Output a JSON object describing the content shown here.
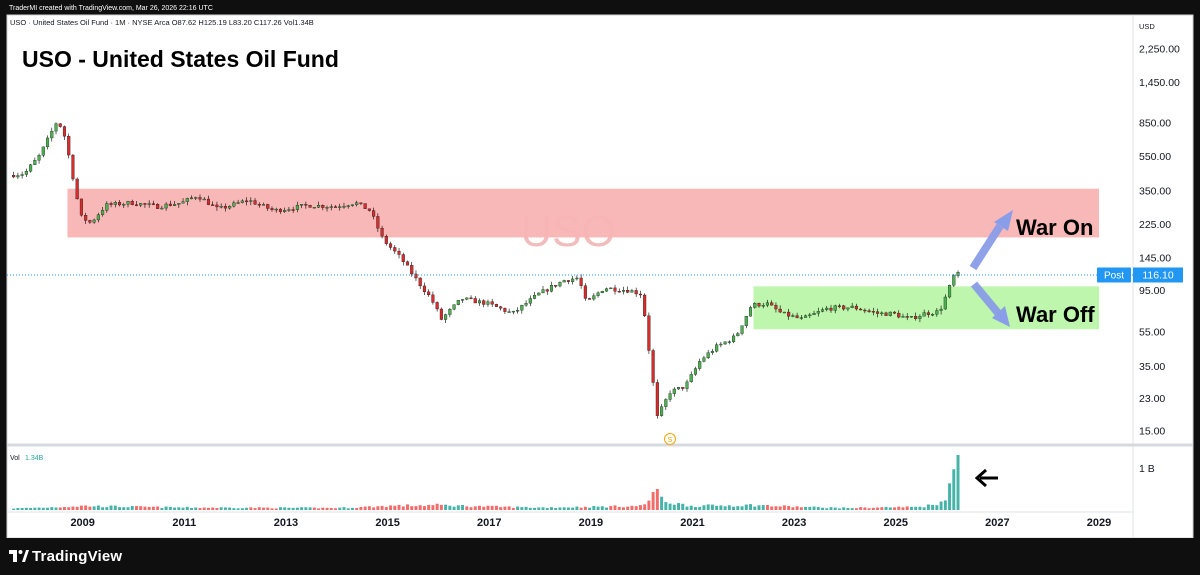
{
  "header": {
    "meta": "TraderMI created with TradingView.com, Mar 26, 2026 22:16 UTC",
    "symbol_line": "USO · United States Oil Fund · 1M · NYSE Arca  O87.62  H125.19  L83.20  C117.26  Vol1.34B",
    "chart_title": "USO - United States Oil Fund",
    "watermark": "USO"
  },
  "colors": {
    "up": "#26a69a",
    "up_body": "#4caf50",
    "down": "#ef5350",
    "down_body": "#d32f2f",
    "red_zone": "#f8b4b4",
    "green_zone": "#b9f6a8",
    "price_line": "#2196f3",
    "arrow": "#7b8fe0",
    "vol_up": "#26a69a",
    "vol_down": "#ef5350"
  },
  "price_axis": {
    "currency": "USD",
    "ticks": [
      "2,250.00",
      "1,450.00",
      "850.00",
      "550.00",
      "350.00",
      "225.00",
      "145.00",
      "95.00",
      "55.00",
      "35.00",
      "23.00",
      "15.00"
    ],
    "current_label": "Post",
    "current_value": "116.10"
  },
  "volume_axis": {
    "label": "Vol",
    "value": "1.34B",
    "tick": "1 B"
  },
  "time_axis": {
    "ticks": [
      "2009",
      "2011",
      "2013",
      "2015",
      "2017",
      "2019",
      "2021",
      "2023",
      "2025",
      "2027",
      "2029"
    ]
  },
  "annotations": {
    "war_on": "War On",
    "war_off": "War Off",
    "split_marker": "S"
  },
  "brand": {
    "name": "TradingView"
  },
  "chart_data": {
    "type": "candlestick",
    "interval": "1M",
    "y_scale": "log",
    "y_range": [
      13,
      2900
    ],
    "x_range": [
      2007.55,
      2029.55
    ],
    "zones": [
      {
        "name": "red zone",
        "x": [
          2008.7,
          2029.0
        ],
        "y": [
          190,
          360
        ]
      },
      {
        "name": "green zone",
        "x": [
          2022.2,
          2029.0
        ],
        "y": [
          57,
          100
        ]
      }
    ],
    "keypoints": [
      [
        2007.6,
        430
      ],
      [
        2007.9,
        440
      ],
      [
        2008.2,
        560
      ],
      [
        2008.45,
        780
      ],
      [
        2008.55,
        890
      ],
      [
        2008.7,
        700
      ],
      [
        2008.85,
        420
      ],
      [
        2009.0,
        250
      ],
      [
        2009.2,
        230
      ],
      [
        2009.5,
        290
      ],
      [
        2010.0,
        300
      ],
      [
        2010.5,
        285
      ],
      [
        2011.0,
        300
      ],
      [
        2011.3,
        330
      ],
      [
        2011.7,
        275
      ],
      [
        2012.3,
        310
      ],
      [
        2012.8,
        270
      ],
      [
        2013.5,
        290
      ],
      [
        2014.0,
        285
      ],
      [
        2014.4,
        300
      ],
      [
        2014.7,
        270
      ],
      [
        2014.95,
        185
      ],
      [
        2015.3,
        145
      ],
      [
        2015.6,
        110
      ],
      [
        2015.9,
        85
      ],
      [
        2016.1,
        65
      ],
      [
        2016.5,
        85
      ],
      [
        2017.0,
        80
      ],
      [
        2017.5,
        70
      ],
      [
        2018.0,
        90
      ],
      [
        2018.5,
        108
      ],
      [
        2018.8,
        112
      ],
      [
        2018.95,
        80
      ],
      [
        2019.3,
        98
      ],
      [
        2019.8,
        95
      ],
      [
        2020.05,
        90
      ],
      [
        2020.2,
        40
      ],
      [
        2020.35,
        18
      ],
      [
        2020.6,
        25
      ],
      [
        2020.9,
        27
      ],
      [
        2021.2,
        38
      ],
      [
        2021.5,
        45
      ],
      [
        2021.9,
        52
      ],
      [
        2022.2,
        78
      ],
      [
        2022.5,
        80
      ],
      [
        2022.8,
        70
      ],
      [
        2023.2,
        65
      ],
      [
        2023.7,
        75
      ],
      [
        2024.2,
        76
      ],
      [
        2024.7,
        70
      ],
      [
        2025.0,
        70
      ],
      [
        2025.3,
        65
      ],
      [
        2025.6,
        70
      ],
      [
        2025.9,
        72
      ],
      [
        2026.0,
        84
      ],
      [
        2026.2,
        117
      ]
    ],
    "volume": {
      "unit": "shares",
      "keypoints": [
        [
          2007.6,
          0.04
        ],
        [
          2009.0,
          0.1
        ],
        [
          2011.0,
          0.06
        ],
        [
          2014.0,
          0.05
        ],
        [
          2015.0,
          0.1
        ],
        [
          2016.0,
          0.12
        ],
        [
          2018.0,
          0.06
        ],
        [
          2020.0,
          0.1
        ],
        [
          2020.25,
          0.5
        ],
        [
          2020.5,
          0.2
        ],
        [
          2021.0,
          0.1
        ],
        [
          2022.2,
          0.12
        ],
        [
          2024.0,
          0.05
        ],
        [
          2025.5,
          0.08
        ],
        [
          2025.9,
          0.2
        ],
        [
          2026.2,
          1.34
        ]
      ]
    }
  }
}
